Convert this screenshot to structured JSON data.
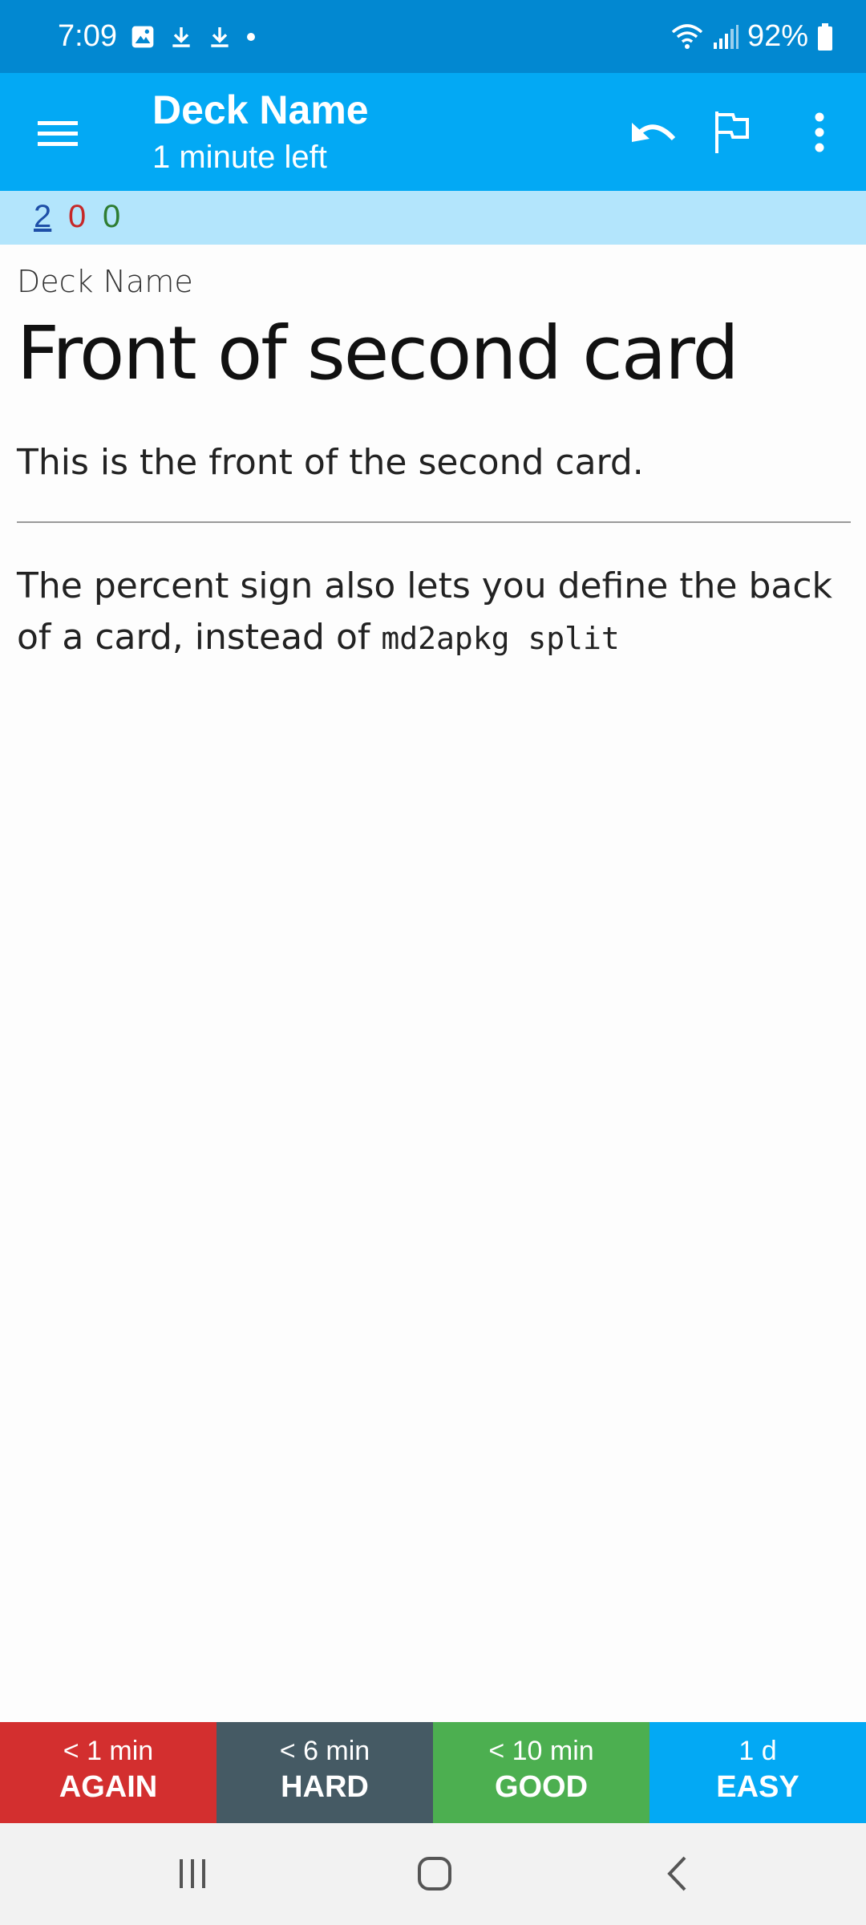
{
  "status_bar": {
    "time": "7:09",
    "battery_text": "92%",
    "icons": [
      "image-notification-icon",
      "download-icon",
      "download-icon",
      "dot-icon",
      "wifi-icon",
      "signal-icon",
      "battery-icon"
    ]
  },
  "app_bar": {
    "title": "Deck Name",
    "subtitle": "1 minute left",
    "icons": [
      "menu-icon",
      "undo-icon",
      "flag-icon",
      "more-vert-icon"
    ]
  },
  "counts": {
    "new": "2",
    "learning": "0",
    "review": "0"
  },
  "card": {
    "deck": "Deck Name",
    "heading": "Front of second card",
    "front_text": "This is the front of the second card.",
    "back_text": "The percent sign also lets you define the back of a card, instead of",
    "back_code": "md2apkg split"
  },
  "answer_buttons": {
    "again": {
      "time": "< 1 min",
      "label": "AGAIN"
    },
    "hard": {
      "time": "< 6 min",
      "label": "HARD"
    },
    "good": {
      "time": "< 10 min",
      "label": "GOOD"
    },
    "easy": {
      "time": "1 d",
      "label": "EASY"
    }
  },
  "colors": {
    "status_bar": "#0288d1",
    "app_bar": "#03a9f4",
    "counts_bar": "#b3e5fc",
    "again": "#d32f2f",
    "hard": "#455a64",
    "good": "#4caf50",
    "easy": "#03a9f4"
  }
}
